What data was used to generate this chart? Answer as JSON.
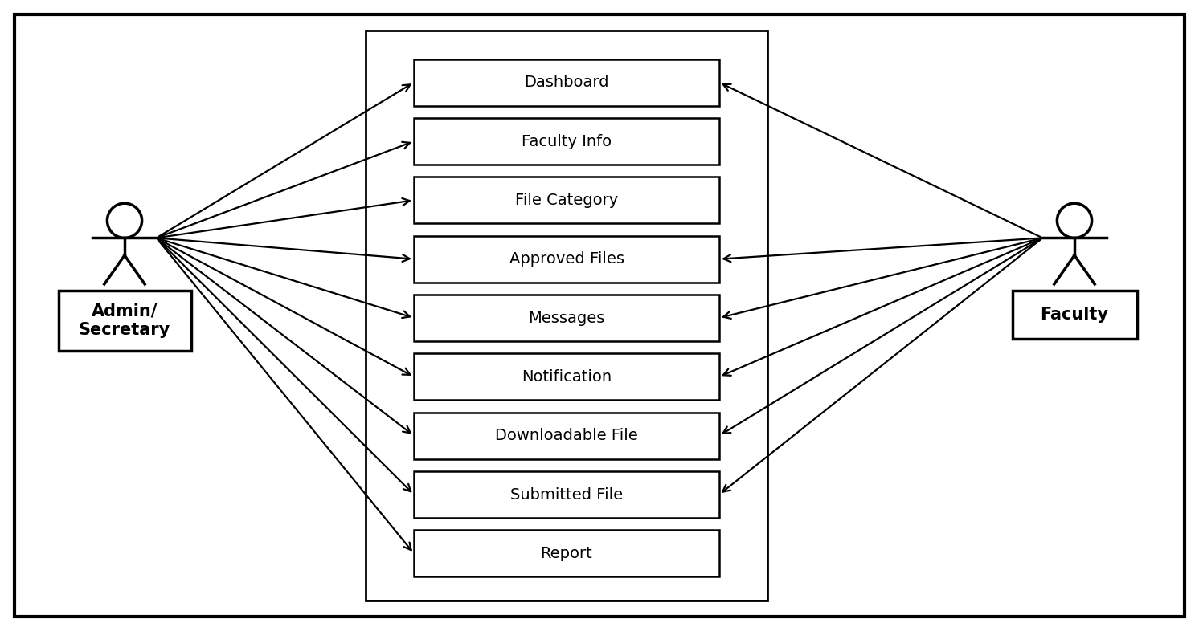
{
  "background_color": "#ffffff",
  "border_color": "#000000",
  "use_cases": [
    "Dashboard",
    "Faculty Info",
    "File Category",
    "Approved Files",
    "Messages",
    "Notification",
    "Downloadable File",
    "Submitted File",
    "Report"
  ],
  "admin_arrows": [
    0,
    1,
    2,
    3,
    4,
    5,
    6,
    7,
    8
  ],
  "faculty_arrows": [
    0,
    3,
    4,
    5,
    6,
    7
  ],
  "arrow_color": "#000000",
  "text_color": "#000000",
  "fontsize": 14,
  "actor_fontsize": 15
}
